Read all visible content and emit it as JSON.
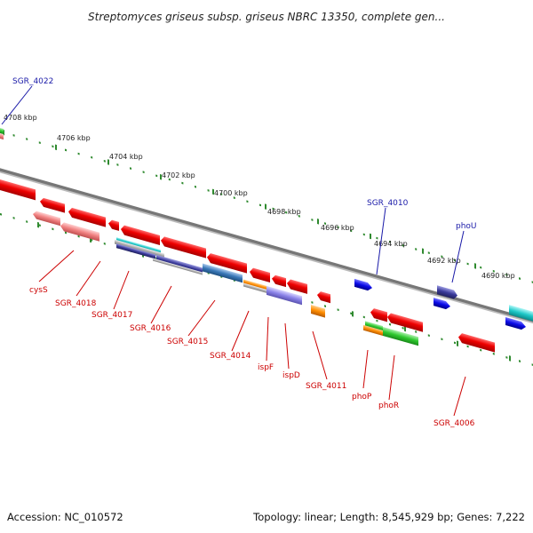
{
  "title": "Streptomyces griseus subsp. griseus NBRC 13350, complete gen...",
  "footer": {
    "accession": "Accession: NC_010572",
    "summary": "Topology: linear; Length: 8,545,929 bp; Genes: 7,222"
  },
  "scale": {
    "ticks": [
      "4708 kbp",
      "4706 kbp",
      "4704 kbp",
      "4702 kbp",
      "4700 kbp",
      "4698 kbp",
      "4696 kbp",
      "4694 kbp",
      "4692 kbp",
      "4690 kbp"
    ]
  },
  "colors": {
    "genome_line": "#777777",
    "tick_marks": "#2f8a2f",
    "forward_gene": "#1010ee",
    "reverse_gene": "#e00000",
    "label_forward": "#1a1aa8",
    "label_reverse": "#cc0000"
  },
  "genes": {
    "forward_labels": [
      "SGR_4022",
      "SGR_4010",
      "phoU"
    ],
    "reverse_labels": [
      "cysS",
      "SGR_4018",
      "SGR_4017",
      "SGR_4016",
      "SGR_4015",
      "SGR_4014",
      "ispF",
      "ispD",
      "SGR_4011",
      "phoP",
      "phoR",
      "SGR_4006"
    ]
  }
}
